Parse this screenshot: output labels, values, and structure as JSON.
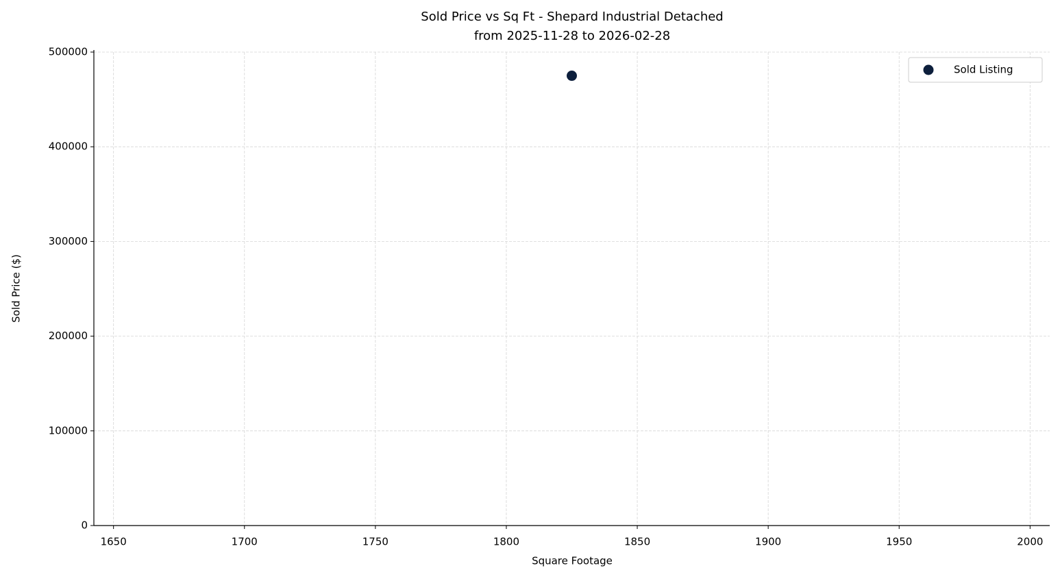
{
  "chart_data": {
    "type": "scatter",
    "title": [
      "Sold Price vs Sq Ft - Shepard Industrial Detached",
      "from 2025-11-28 to 2026-02-28"
    ],
    "x_label": "Square Footage",
    "y_label": "Sold Price ($)",
    "x": [
      1825
    ],
    "series": [
      {
        "name": "Sold Listing",
        "color": "#0d1f3c",
        "values": [
          475000
        ]
      }
    ],
    "xlim": [
      1642.5,
      2007.5
    ],
    "xticks": [
      1650,
      1700,
      1750,
      1800,
      1850,
      1900,
      1950,
      2000
    ],
    "ylim": [
      0,
      500000
    ],
    "yticks": [
      0,
      100000,
      200000,
      300000,
      400000,
      500000
    ],
    "grid": true,
    "legend": "upper right"
  }
}
